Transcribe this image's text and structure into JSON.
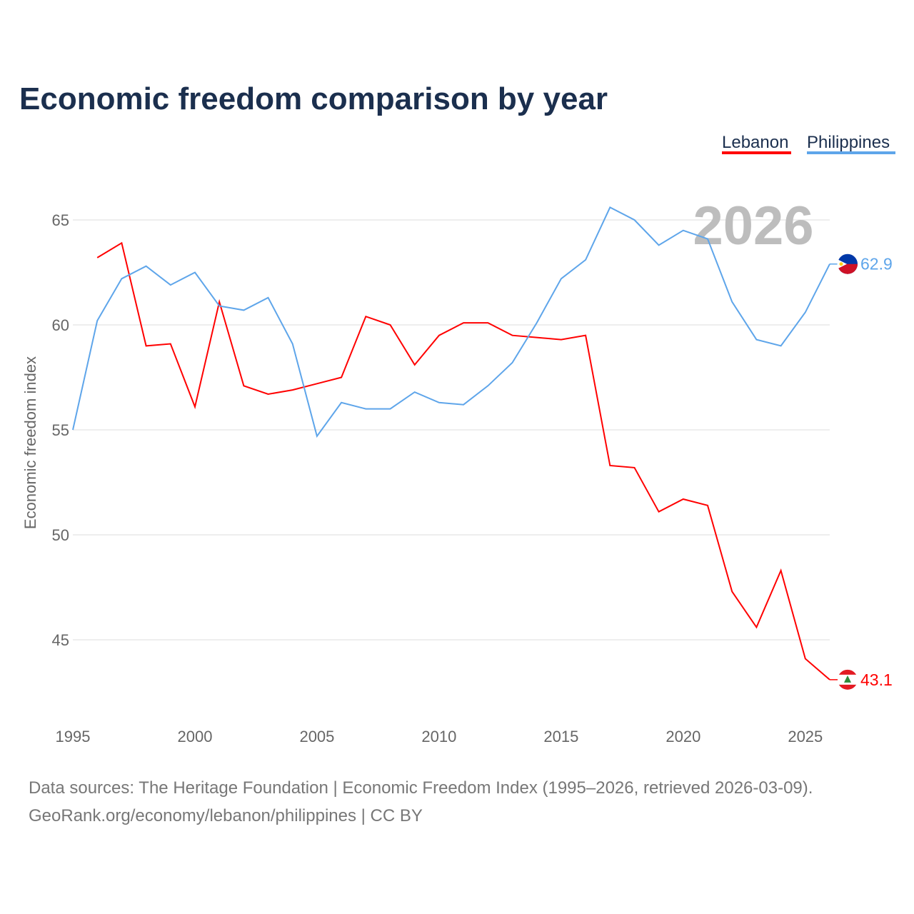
{
  "chart_data": {
    "type": "line",
    "title": "Economic freedom comparison by year",
    "xlabel": "",
    "ylabel": "Economic freedom index",
    "xlim": [
      1995,
      2026
    ],
    "ylim": [
      42,
      67
    ],
    "grid": true,
    "legend_placement": "top-right",
    "x_ticks": [
      1995,
      2000,
      2005,
      2010,
      2015,
      2020,
      2025
    ],
    "y_ticks": [
      45,
      50,
      55,
      60,
      65
    ],
    "year_label": "2026",
    "x": [
      1995,
      1996,
      1997,
      1998,
      1999,
      2000,
      2001,
      2002,
      2003,
      2004,
      2005,
      2006,
      2007,
      2008,
      2009,
      2010,
      2011,
      2012,
      2013,
      2014,
      2015,
      2016,
      2017,
      2018,
      2019,
      2020,
      2021,
      2022,
      2023,
      2024,
      2025,
      2026
    ],
    "series": [
      {
        "name": "Lebanon",
        "color": "#ff0000",
        "end_label": "43.1",
        "values": [
          null,
          63.2,
          63.9,
          59.0,
          59.1,
          56.1,
          61.1,
          57.1,
          56.7,
          56.9,
          57.2,
          57.5,
          60.4,
          60.0,
          58.1,
          59.5,
          60.1,
          60.1,
          59.5,
          59.4,
          59.3,
          59.5,
          53.3,
          53.2,
          51.1,
          51.7,
          51.4,
          47.3,
          45.6,
          48.3,
          44.1,
          43.1
        ]
      },
      {
        "name": "Philippines",
        "color": "#5ea5ea",
        "end_label": "62.9",
        "values": [
          55.0,
          60.2,
          62.2,
          62.8,
          61.9,
          62.5,
          60.9,
          60.7,
          61.3,
          59.1,
          54.7,
          56.3,
          56.0,
          56.0,
          56.8,
          56.3,
          56.2,
          57.1,
          58.2,
          60.1,
          62.2,
          63.1,
          65.6,
          65.0,
          63.8,
          64.5,
          64.1,
          61.1,
          59.3,
          59.0,
          60.6,
          62.9
        ]
      }
    ],
    "source_line1": "Data sources: The Heritage Foundation | Economic Freedom Index (1995–2026, retrieved 2026-03-09).",
    "source_line2": "GeoRank.org/economy/lebanon/philippines | CC BY"
  }
}
